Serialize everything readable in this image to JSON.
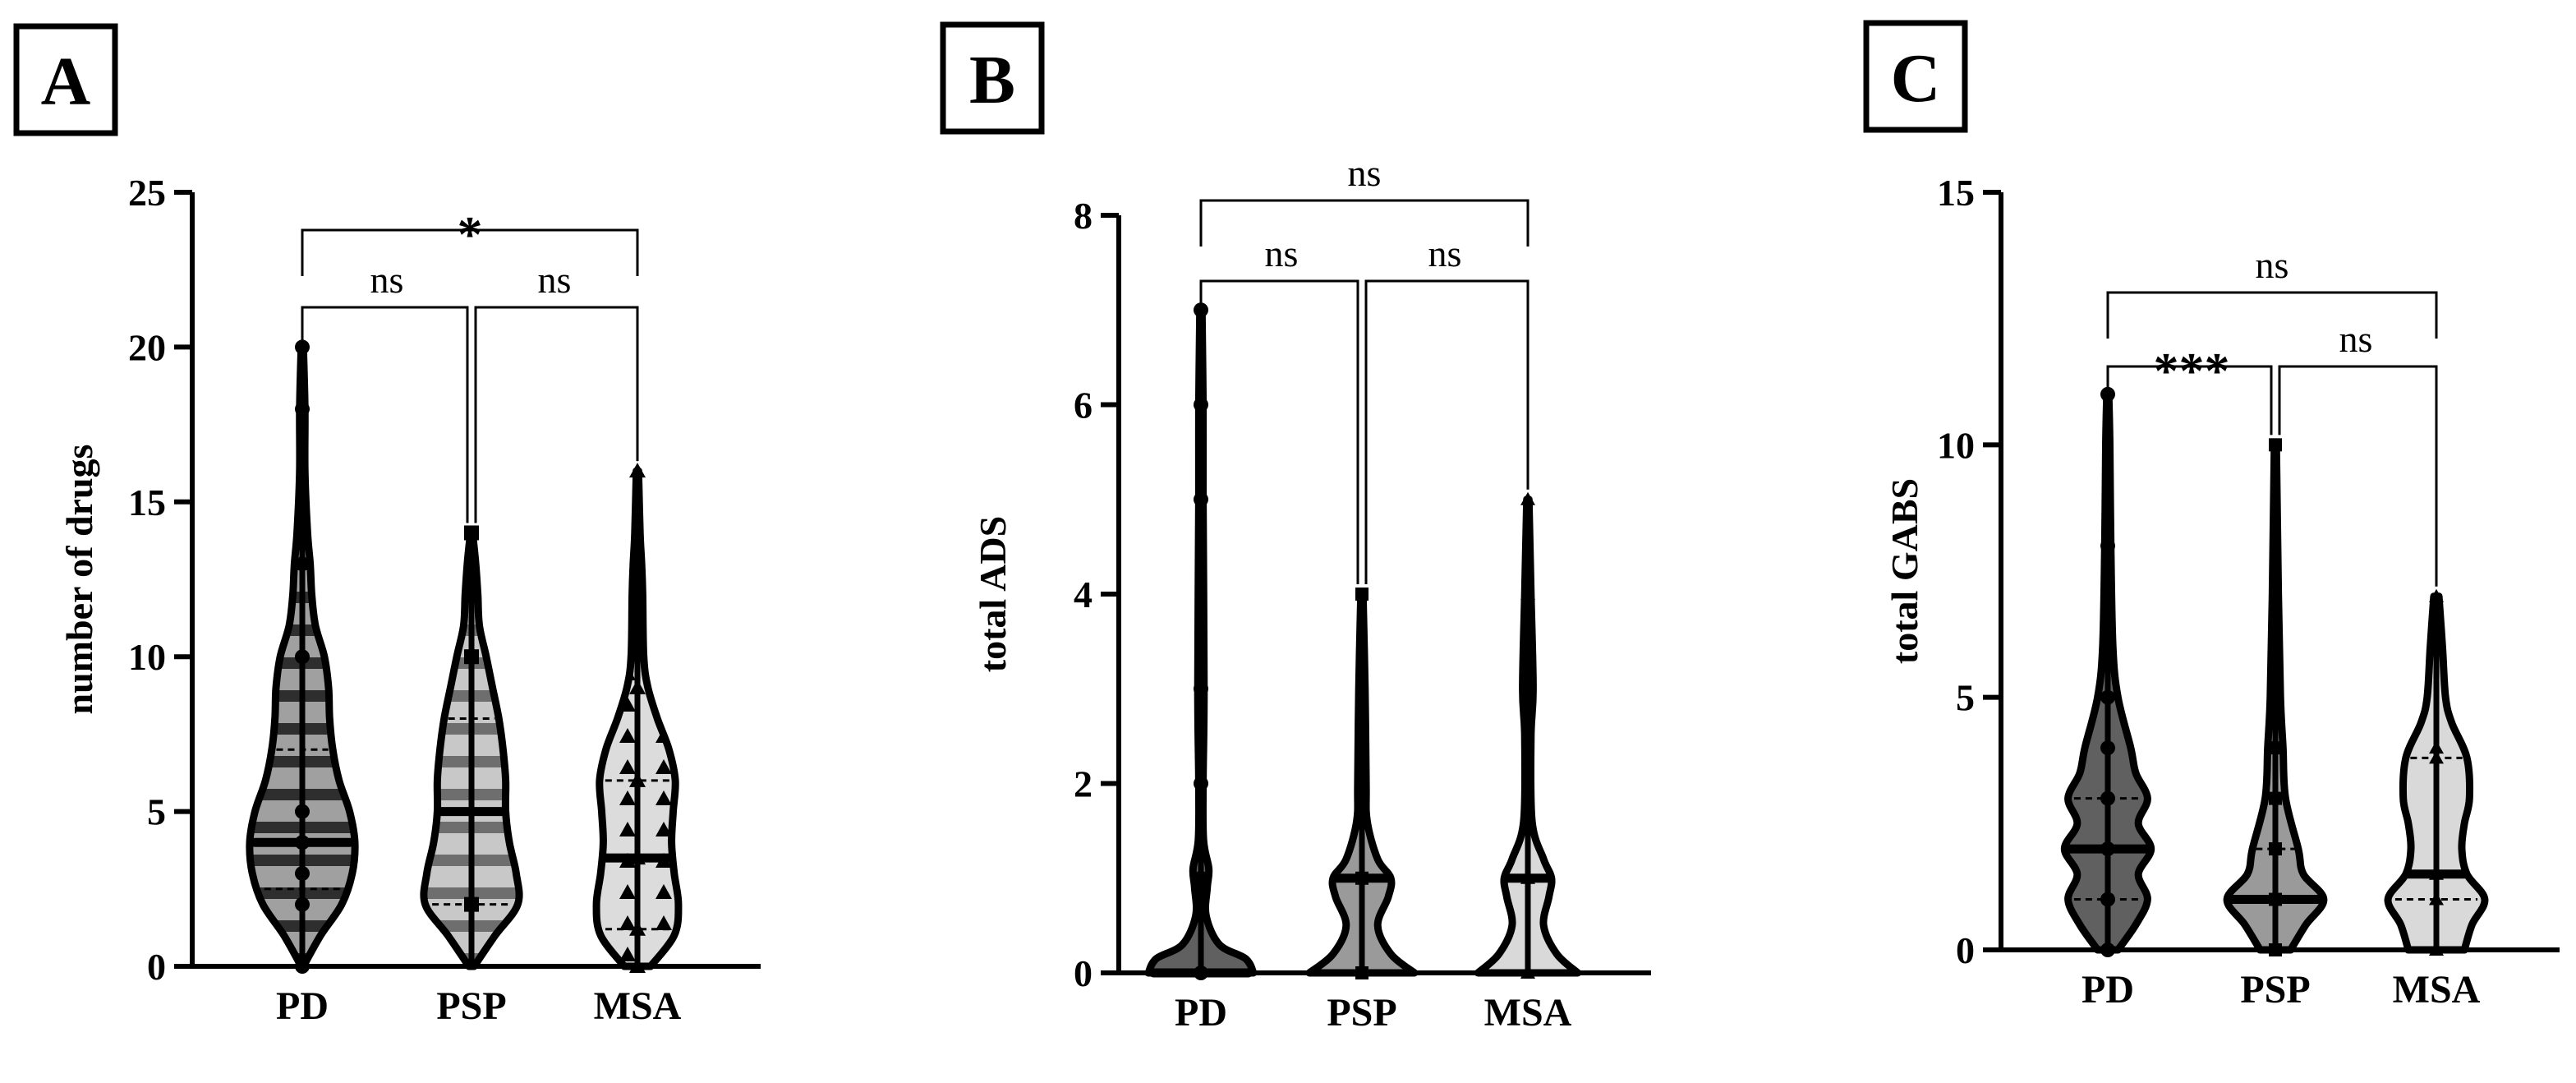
{
  "figure": {
    "background": "#ffffff",
    "stroke_color": "#000000",
    "group_colors": {
      "PD": "#606060",
      "PSP": "#9a9a9a",
      "MSA": "#d9d9d9"
    }
  },
  "chart_data": [
    {
      "panel": "A",
      "type": "violin",
      "title": "",
      "xlabel": "",
      "ylabel": "number of drugs",
      "ylim": [
        0,
        25
      ],
      "yticks": [
        "0",
        "5",
        "10",
        "15",
        "20",
        "25"
      ],
      "categories": [
        "PD",
        "PSP",
        "MSA"
      ],
      "violins": [
        {
          "category": "PD",
          "fill_pattern": "stripes",
          "color": "#606060",
          "min": 0,
          "max": 20,
          "median": 4,
          "q1": 2.5,
          "q3": 7,
          "profile": [
            [
              0,
              0.02
            ],
            [
              1,
              0.35
            ],
            [
              2,
              0.75
            ],
            [
              3,
              0.95
            ],
            [
              4,
              1.0
            ],
            [
              5,
              0.9
            ],
            [
              6,
              0.7
            ],
            [
              7,
              0.58
            ],
            [
              8,
              0.52
            ],
            [
              9,
              0.5
            ],
            [
              10,
              0.42
            ],
            [
              11,
              0.25
            ],
            [
              12,
              0.18
            ],
            [
              13,
              0.15
            ],
            [
              14,
              0.1
            ],
            [
              16,
              0.05
            ],
            [
              18,
              0.05
            ],
            [
              20,
              0.02
            ]
          ],
          "points": [
            20,
            18,
            14,
            13,
            10,
            5,
            4,
            4,
            3,
            2,
            0
          ]
        },
        {
          "category": "PSP",
          "fill_pattern": "stripes",
          "color": "#9a9a9a",
          "min": 0,
          "max": 14,
          "median": 5,
          "q1": 2,
          "q3": 8,
          "profile": [
            [
              0,
              0.05
            ],
            [
              1,
              0.45
            ],
            [
              2,
              0.88
            ],
            [
              3,
              0.85
            ],
            [
              4,
              0.72
            ],
            [
              5,
              0.65
            ],
            [
              6,
              0.65
            ],
            [
              7,
              0.6
            ],
            [
              8,
              0.52
            ],
            [
              9,
              0.4
            ],
            [
              10,
              0.28
            ],
            [
              11,
              0.15
            ],
            [
              12,
              0.12
            ],
            [
              13,
              0.08
            ],
            [
              14,
              0.02
            ]
          ],
          "points": [
            14,
            12,
            10,
            2
          ]
        },
        {
          "category": "MSA",
          "fill_pattern": "triangles",
          "color": "#d9d9d9",
          "min": 0,
          "max": 16,
          "median": 3.5,
          "q1": 1.2,
          "q3": 6,
          "profile": [
            [
              0,
              0.25
            ],
            [
              1,
              0.7
            ],
            [
              2,
              0.78
            ],
            [
              3,
              0.7
            ],
            [
              4,
              0.65
            ],
            [
              5,
              0.68
            ],
            [
              6,
              0.72
            ],
            [
              7,
              0.6
            ],
            [
              8,
              0.38
            ],
            [
              9,
              0.2
            ],
            [
              10,
              0.12
            ],
            [
              12,
              0.1
            ],
            [
              13,
              0.08
            ],
            [
              14,
              0.05
            ],
            [
              16,
              0.02
            ]
          ],
          "points": [
            16,
            13,
            9,
            6,
            3.5,
            1.2,
            0
          ]
        }
      ],
      "comparisons": [
        {
          "from": "PD",
          "to": "PSP",
          "label": "ns",
          "level": 1
        },
        {
          "from": "PSP",
          "to": "MSA",
          "label": "ns",
          "level": 1
        },
        {
          "from": "PD",
          "to": "MSA",
          "label": "*",
          "level": 2
        }
      ]
    },
    {
      "panel": "B",
      "type": "violin",
      "title": "",
      "xlabel": "",
      "ylabel": "total ADS",
      "ylim": [
        0,
        8
      ],
      "yticks": [
        "0",
        "2",
        "4",
        "6",
        "8"
      ],
      "categories": [
        "PD",
        "PSP",
        "MSA"
      ],
      "violins": [
        {
          "category": "PD",
          "fill_pattern": "solid",
          "color": "#606060",
          "min": 0,
          "max": 7,
          "median": 0,
          "q1": 0,
          "q3": 1,
          "profile": [
            [
              0,
              1.0
            ],
            [
              0.15,
              0.85
            ],
            [
              0.3,
              0.35
            ],
            [
              0.6,
              0.1
            ],
            [
              0.9,
              0.12
            ],
            [
              1.1,
              0.15
            ],
            [
              1.4,
              0.05
            ],
            [
              2,
              0.04
            ],
            [
              3,
              0.06
            ],
            [
              5,
              0.04
            ],
            [
              6,
              0.04
            ],
            [
              7,
              0.02
            ]
          ],
          "points": [
            7,
            6,
            5,
            3,
            2,
            1,
            0
          ]
        },
        {
          "category": "PSP",
          "fill_pattern": "solid",
          "color": "#9a9a9a",
          "min": 0,
          "max": 4,
          "median": 1,
          "q1": 0,
          "q3": 1,
          "profile": [
            [
              0,
              1.0
            ],
            [
              0.2,
              0.55
            ],
            [
              0.5,
              0.3
            ],
            [
              0.8,
              0.5
            ],
            [
              1.0,
              0.55
            ],
            [
              1.2,
              0.3
            ],
            [
              1.6,
              0.1
            ],
            [
              2,
              0.08
            ],
            [
              3,
              0.06
            ],
            [
              4,
              0.02
            ]
          ],
          "points": [
            4,
            3,
            2,
            1,
            0
          ]
        },
        {
          "category": "MSA",
          "fill_pattern": "solid",
          "color": "#d9d9d9",
          "min": 0,
          "max": 5,
          "median": 1,
          "q1": 0,
          "q3": 1,
          "profile": [
            [
              0,
              0.95
            ],
            [
              0.2,
              0.55
            ],
            [
              0.5,
              0.3
            ],
            [
              0.8,
              0.4
            ],
            [
              1.0,
              0.45
            ],
            [
              1.2,
              0.3
            ],
            [
              1.6,
              0.08
            ],
            [
              2.5,
              0.06
            ],
            [
              3,
              0.1
            ],
            [
              4,
              0.06
            ],
            [
              5,
              0.02
            ]
          ],
          "points": [
            5,
            4,
            3,
            1,
            0
          ]
        }
      ],
      "comparisons": [
        {
          "from": "PD",
          "to": "PSP",
          "label": "ns",
          "level": 1
        },
        {
          "from": "PSP",
          "to": "MSA",
          "label": "ns",
          "level": 1
        },
        {
          "from": "PD",
          "to": "MSA",
          "label": "ns",
          "level": 2
        }
      ]
    },
    {
      "panel": "C",
      "type": "violin",
      "title": "",
      "xlabel": "",
      "ylabel": "total  GABS",
      "ylim": [
        0,
        15
      ],
      "yticks": [
        "0",
        "5",
        "10",
        "15"
      ],
      "categories": [
        "PD",
        "PSP",
        "MSA"
      ],
      "violins": [
        {
          "category": "PD",
          "fill_pattern": "solid",
          "color": "#606060",
          "min": 0,
          "max": 11,
          "median": 2,
          "q1": 1,
          "q3": 3,
          "profile": [
            [
              0,
              0.2
            ],
            [
              0.5,
              0.55
            ],
            [
              1,
              0.78
            ],
            [
              1.5,
              0.6
            ],
            [
              2,
              0.85
            ],
            [
              2.5,
              0.6
            ],
            [
              3,
              0.78
            ],
            [
              3.5,
              0.55
            ],
            [
              4,
              0.45
            ],
            [
              5,
              0.2
            ],
            [
              6,
              0.1
            ],
            [
              8,
              0.06
            ],
            [
              10,
              0.04
            ],
            [
              11,
              0.02
            ]
          ],
          "points": [
            11,
            8,
            7,
            6,
            5,
            4,
            3,
            2,
            1,
            0
          ]
        },
        {
          "category": "PSP",
          "fill_pattern": "solid",
          "color": "#9a9a9a",
          "min": 0,
          "max": 10,
          "median": 1,
          "q1": 1,
          "q3": 2,
          "profile": [
            [
              0,
              0.3
            ],
            [
              0.5,
              0.6
            ],
            [
              1,
              0.95
            ],
            [
              1.5,
              0.55
            ],
            [
              2,
              0.45
            ],
            [
              3,
              0.2
            ],
            [
              4,
              0.15
            ],
            [
              5,
              0.1
            ],
            [
              7,
              0.06
            ],
            [
              10,
              0.02
            ]
          ],
          "points": [
            10,
            7,
            6,
            4,
            3,
            2,
            1,
            0
          ]
        },
        {
          "category": "MSA",
          "fill_pattern": "solid",
          "color": "#d9d9d9",
          "min": 0,
          "max": 7,
          "median": 1.5,
          "q1": 1,
          "q3": 3.8,
          "profile": [
            [
              0,
              0.55
            ],
            [
              0.5,
              0.7
            ],
            [
              1,
              0.95
            ],
            [
              1.5,
              0.6
            ],
            [
              2,
              0.5
            ],
            [
              2.5,
              0.55
            ],
            [
              3,
              0.65
            ],
            [
              3.8,
              0.6
            ],
            [
              4.5,
              0.3
            ],
            [
              5,
              0.18
            ],
            [
              6,
              0.12
            ],
            [
              7,
              0.05
            ]
          ],
          "points": [
            7,
            4,
            3.8,
            1.5,
            1,
            0
          ]
        }
      ],
      "comparisons": [
        {
          "from": "PD",
          "to": "PSP",
          "label": "***",
          "level": 1
        },
        {
          "from": "PSP",
          "to": "MSA",
          "label": "ns",
          "level": 1
        },
        {
          "from": "PD",
          "to": "MSA",
          "label": "ns",
          "level": 2
        }
      ]
    }
  ]
}
